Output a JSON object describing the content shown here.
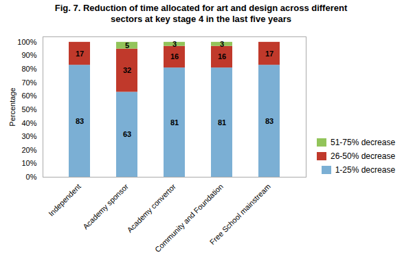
{
  "chart_data": {
    "type": "bar",
    "stacked": true,
    "title": "Fig. 7. Reduction of time allocated for art and design across different\nsectors at key stage 4 in the last five years",
    "ylabel": "Percentage",
    "categories": [
      "Independent",
      "Academy sponsor",
      "Academy convertor",
      "Community and Foundation",
      "Free School mainstream"
    ],
    "series": [
      {
        "name": "1-25% decrease",
        "color": "#7bafd4",
        "values": [
          83,
          63,
          81,
          81,
          83
        ]
      },
      {
        "name": "26-50% decrease",
        "color": "#c0392b",
        "values": [
          17,
          32,
          16,
          16,
          17
        ]
      },
      {
        "name": "51-75% decrease",
        "color": "#92c45a",
        "values": [
          0,
          5,
          3,
          3,
          0
        ]
      }
    ],
    "ylim": [
      0,
      104
    ],
    "yticks": [
      {
        "value": 0,
        "label": "0%"
      },
      {
        "value": 10,
        "label": "10%"
      },
      {
        "value": 20,
        "label": "20%"
      },
      {
        "value": 30,
        "label": "30%"
      },
      {
        "value": 40,
        "label": "40%"
      },
      {
        "value": 50,
        "label": "50%"
      },
      {
        "value": 60,
        "label": "60%"
      },
      {
        "value": 70,
        "label": "70%"
      },
      {
        "value": 80,
        "label": "80%"
      },
      {
        "value": 90,
        "label": "90%"
      },
      {
        "value": 100,
        "label": "100%"
      }
    ],
    "data_labels": true,
    "legend": "lower right",
    "grid": false
  }
}
